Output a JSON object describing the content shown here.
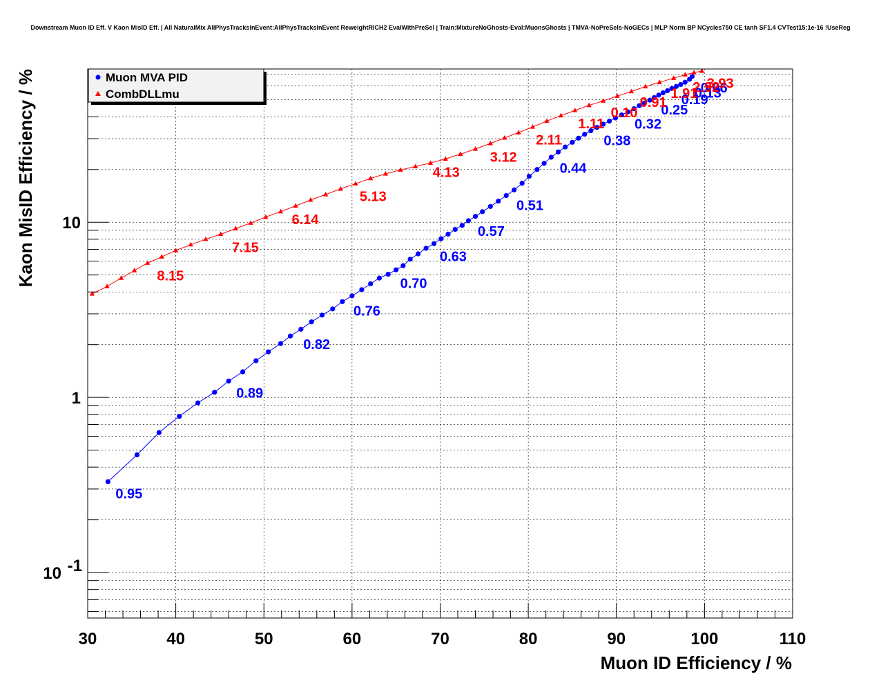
{
  "chart_data": {
    "type": "line",
    "title": "Downstream Muon ID Eff. V Kaon MisID Eff. | All NaturalMix AllPhysTracksInEvent:AllPhysTracksInEvent ReweightRICH2 EvalWithPreSel | Train:MixtureNoGhosts-Eval:MuonsGhosts | TMVA-NoPreSels-NoGECs | MLP Norm BP NCycles750 CE tanh SF1.4 CVTest15:1e-16 !UseReg",
    "xlabel": "Muon ID Efficiency / %",
    "ylabel": "Kaon MisID Efficiency / %",
    "xlim": [
      30,
      110
    ],
    "ylim": [
      0.055,
      75
    ],
    "yscale": "log",
    "grid": true,
    "legend_position": "top-left",
    "x_ticks": [
      "30",
      "40",
      "50",
      "60",
      "70",
      "80",
      "90",
      "100",
      "110"
    ],
    "y_ticks": [
      {
        "value": 0.1,
        "base": "10",
        "exp": "-1"
      },
      {
        "value": 1,
        "base": "1",
        "exp": ""
      },
      {
        "value": 10,
        "base": "10",
        "exp": ""
      }
    ],
    "series": [
      {
        "name": "Muon MVA PID",
        "color": "#0000ff",
        "marker": "circle",
        "x": [
          32.3,
          35.6,
          38.1,
          40.4,
          42.5,
          44.4,
          46.0,
          47.6,
          49.1,
          50.5,
          51.9,
          53.0,
          54.2,
          55.4,
          56.6,
          57.8,
          58.9,
          60.0,
          61.1,
          62.1,
          63.1,
          64.1,
          65.0,
          65.8,
          66.6,
          67.5,
          68.4,
          69.3,
          70.1,
          70.9,
          71.7,
          72.5,
          73.2,
          74.0,
          74.8,
          75.7,
          76.6,
          77.5,
          78.4,
          79.3,
          80.1,
          81.0,
          81.8,
          82.6,
          83.4,
          84.2,
          85.0,
          85.7,
          86.4,
          87.1,
          87.8,
          88.5,
          89.2,
          89.9,
          90.6,
          91.3,
          92.0,
          92.6,
          93.2,
          93.8,
          94.3,
          94.8,
          95.3,
          95.8,
          96.3,
          96.8,
          97.3,
          97.8,
          98.3,
          98.6
        ],
        "y": [
          0.33,
          0.47,
          0.63,
          0.78,
          0.93,
          1.07,
          1.24,
          1.4,
          1.62,
          1.82,
          2.03,
          2.24,
          2.45,
          2.7,
          2.95,
          3.2,
          3.52,
          3.8,
          4.12,
          4.45,
          4.8,
          5.05,
          5.35,
          5.65,
          6.15,
          6.6,
          7.1,
          7.55,
          8.05,
          8.55,
          9.1,
          9.6,
          10.2,
          10.8,
          11.5,
          12.3,
          13.2,
          14.2,
          15.3,
          16.7,
          18.3,
          20.0,
          21.7,
          23.5,
          25.2,
          26.9,
          28.6,
          30.2,
          31.8,
          33.3,
          34.8,
          36.3,
          37.8,
          39.4,
          41.0,
          42.7,
          44.5,
          46.3,
          48.0,
          49.8,
          51.5,
          53.2,
          54.8,
          56.4,
          58.0,
          59.6,
          61.2,
          63.0,
          65.5,
          68.0
        ],
        "annotations": [
          {
            "x": 32.3,
            "y": 0.33,
            "label": "0.95"
          },
          {
            "x": 46.0,
            "y": 1.24,
            "label": "0.89"
          },
          {
            "x": 53.6,
            "y": 2.35,
            "label": "0.82"
          },
          {
            "x": 59.3,
            "y": 3.65,
            "label": "0.76"
          },
          {
            "x": 64.6,
            "y": 5.25,
            "label": "0.70"
          },
          {
            "x": 69.1,
            "y": 7.45,
            "label": "0.63"
          },
          {
            "x": 73.4,
            "y": 10.4,
            "label": "0.57"
          },
          {
            "x": 77.8,
            "y": 14.6,
            "label": "0.51"
          },
          {
            "x": 82.7,
            "y": 23.8,
            "label": "0.44"
          },
          {
            "x": 87.7,
            "y": 34.3,
            "label": "0.38"
          },
          {
            "x": 91.2,
            "y": 42.5,
            "label": "0.32"
          },
          {
            "x": 94.2,
            "y": 51.2,
            "label": "0.25"
          },
          {
            "x": 96.5,
            "y": 58.6,
            "label": "0.19"
          },
          {
            "x": 98.0,
            "y": 64.0,
            "label": "0.13"
          },
          {
            "x": 98.7,
            "y": 68.5,
            "label": "0.06"
          }
        ]
      },
      {
        "name": "CombDLLmu",
        "color": "#ff0000",
        "marker": "triangle",
        "x": [
          30.5,
          32.2,
          33.8,
          35.3,
          36.8,
          38.4,
          40.0,
          41.7,
          43.4,
          45.1,
          46.8,
          48.5,
          50.2,
          51.9,
          53.6,
          55.3,
          57.0,
          58.7,
          60.4,
          62.1,
          63.8,
          65.5,
          67.2,
          68.9,
          70.6,
          72.3,
          74.0,
          75.7,
          77.3,
          78.9,
          80.5,
          82.1,
          83.7,
          85.3,
          86.9,
          88.5,
          90.1,
          91.7,
          93.3,
          94.9,
          96.5,
          97.8,
          98.8,
          99.7
        ],
        "y": [
          3.9,
          4.3,
          4.8,
          5.3,
          5.85,
          6.35,
          6.9,
          7.45,
          8.0,
          8.55,
          9.2,
          9.9,
          10.7,
          11.5,
          12.4,
          13.4,
          14.4,
          15.5,
          16.6,
          17.8,
          18.9,
          19.9,
          20.8,
          21.8,
          23.0,
          24.5,
          26.2,
          28.2,
          30.3,
          32.5,
          35.0,
          37.8,
          40.6,
          43.5,
          46.5,
          49.3,
          52.5,
          55.8,
          59.5,
          63.0,
          66.5,
          69.5,
          71.5,
          73.0
        ],
        "annotations": [
          {
            "x": 37.0,
            "y": 5.8,
            "label": "8.15"
          },
          {
            "x": 45.5,
            "y": 8.4,
            "label": "7.15"
          },
          {
            "x": 52.3,
            "y": 12.1,
            "label": "6.14"
          },
          {
            "x": 60.0,
            "y": 16.4,
            "label": "5.13"
          },
          {
            "x": 68.3,
            "y": 22.6,
            "label": "4.13"
          },
          {
            "x": 74.8,
            "y": 27.5,
            "label": "3.12"
          },
          {
            "x": 80.0,
            "y": 34.5,
            "label": "2.11"
          },
          {
            "x": 84.8,
            "y": 42.8,
            "label": "1.11"
          },
          {
            "x": 88.5,
            "y": 49.5,
            "label": "0.10"
          },
          {
            "x": 91.8,
            "y": 56.5,
            "label": "0.91"
          },
          {
            "x": 95.3,
            "y": 63.8,
            "label": "1.91"
          },
          {
            "x": 97.8,
            "y": 69.0,
            "label": "2.92"
          },
          {
            "x": 99.4,
            "y": 72.6,
            "label": "3.93"
          }
        ]
      }
    ]
  }
}
